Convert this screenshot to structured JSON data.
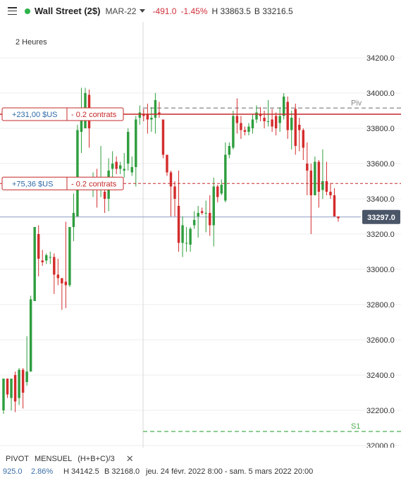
{
  "header": {
    "title": "Wall Street (2$)",
    "contract": "MAR-22",
    "change": "-491.0",
    "change_pct": "-1.45%",
    "high": "H 33863.5",
    "low": "B 33216.5"
  },
  "timeframe_label": "2 Heures",
  "positions": [
    {
      "pnl": "+231,00 $US",
      "size": "- 0.2 contrats",
      "price": 33880
    },
    {
      "pnl": "+75,36 $US",
      "size": "- 0.2 contrats",
      "price": 33487
    }
  ],
  "levels": [
    {
      "label": "Piv",
      "price": 33915,
      "color": "#888888"
    },
    {
      "label": "S1",
      "price": 32080,
      "color": "#4caf50"
    }
  ],
  "current_price": "33297.0",
  "footer": {
    "indicator": "PIVOT",
    "period": "MENSUEL",
    "formula": "(H+B+C)/3",
    "close_symbol": "✕",
    "left_value": "925.0",
    "left_pct": "2.86%",
    "left_high": "H 34142.5",
    "left_low": "B 32168.0",
    "range_text": "jeu. 24 févr. 2022 8:00 - sam. 5 mars 2022 20:00"
  },
  "colors": {
    "up": "#2e9e3e",
    "down": "#d42c2c",
    "accent_red": "#c62828",
    "price_tag": "#4a5568"
  },
  "chart_data": {
    "type": "candlestick",
    "title": "Wall Street (2$) MAR-22",
    "timeframe": "2 Heures",
    "y_ticks": [
      32000,
      32200,
      32400,
      32600,
      32800,
      33000,
      33200,
      33400,
      33600,
      33800,
      34000,
      34200
    ],
    "ylim": [
      31960,
      34320
    ],
    "grid": true,
    "candles": [
      [
        32200,
        32380,
        32180,
        32380
      ],
      [
        32380,
        32380,
        32270,
        32290
      ],
      [
        32270,
        32380,
        32200,
        32380
      ],
      [
        32400,
        32420,
        32190,
        32250
      ],
      [
        32270,
        32440,
        32230,
        32430
      ],
      [
        32430,
        32440,
        32210,
        32300
      ],
      [
        32360,
        32620,
        32340,
        32420
      ],
      [
        32420,
        32850,
        32420,
        32830
      ],
      [
        32820,
        33240,
        32820,
        33240
      ],
      [
        33200,
        33250,
        32960,
        33060
      ],
      [
        33050,
        33110,
        33020,
        33040
      ],
      [
        33050,
        33090,
        33030,
        33080
      ],
      [
        33070,
        33100,
        33030,
        33070
      ],
      [
        33070,
        33090,
        32860,
        32970
      ],
      [
        32970,
        33060,
        32910,
        32950
      ],
      [
        32950,
        32950,
        32770,
        32920
      ],
      [
        32930,
        33270,
        32780,
        32910
      ],
      [
        32910,
        33230,
        32900,
        33240
      ],
      [
        33240,
        33430,
        33160,
        33320
      ],
      [
        33300,
        33820,
        33300,
        33790
      ],
      [
        33780,
        34030,
        33660,
        33870
      ],
      [
        33800,
        34030,
        33800,
        34000
      ],
      [
        33990,
        34020,
        33690,
        33800
      ],
      [
        33500,
        33550,
        33410,
        33500
      ],
      [
        33520,
        33570,
        33350,
        33470
      ],
      [
        33490,
        33700,
        33410,
        33500
      ],
      [
        33440,
        33510,
        33320,
        33400
      ],
      [
        33400,
        33630,
        33330,
        33560
      ],
      [
        33570,
        33670,
        33520,
        33600
      ],
      [
        33610,
        33640,
        33540,
        33570
      ],
      [
        33570,
        33610,
        33540,
        33590
      ],
      [
        33560,
        33660,
        33520,
        33570
      ],
      [
        33600,
        33800,
        33560,
        33780
      ],
      [
        33550,
        33640,
        33530,
        33580
      ],
      [
        33580,
        33870,
        33470,
        33850
      ],
      [
        33860,
        33930,
        33820,
        33890
      ],
      [
        33880,
        33910,
        33840,
        33870
      ],
      [
        33880,
        33940,
        33770,
        33850
      ],
      [
        33850,
        33920,
        33780,
        33860
      ],
      [
        33860,
        34000,
        33770,
        33960
      ],
      [
        33890,
        33950,
        33860,
        33880
      ],
      [
        33850,
        33830,
        33630,
        33650
      ],
      [
        33650,
        33650,
        33530,
        33550
      ],
      [
        33550,
        33560,
        33300,
        33470
      ],
      [
        33470,
        33500,
        33300,
        33400
      ],
      [
        33360,
        33560,
        33100,
        33150
      ],
      [
        33150,
        33300,
        33070,
        33250
      ],
      [
        33150,
        33240,
        33100,
        33150
      ],
      [
        33140,
        33240,
        33100,
        33230
      ],
      [
        33250,
        33330,
        33230,
        33280
      ],
      [
        33300,
        33360,
        33180,
        33320
      ],
      [
        33330,
        33350,
        33310,
        33320
      ],
      [
        33320,
        33390,
        33210,
        33320
      ],
      [
        33320,
        33420,
        33190,
        33250
      ],
      [
        33250,
        33520,
        33130,
        33470
      ],
      [
        33470,
        33480,
        33380,
        33410
      ],
      [
        33430,
        33510,
        33420,
        33480
      ],
      [
        33390,
        33720,
        33380,
        33650
      ],
      [
        33650,
        33720,
        33630,
        33700
      ],
      [
        33690,
        33900,
        33680,
        33870
      ],
      [
        33870,
        33970,
        33770,
        33830
      ],
      [
        33830,
        33870,
        33740,
        33790
      ],
      [
        33790,
        33810,
        33760,
        33780
      ],
      [
        33780,
        33830,
        33760,
        33810
      ],
      [
        33800,
        33880,
        33770,
        33850
      ],
      [
        33850,
        33930,
        33830,
        33890
      ],
      [
        33880,
        33920,
        33840,
        33870
      ],
      [
        33860,
        33900,
        33800,
        33840
      ],
      [
        33840,
        33960,
        33810,
        33840
      ],
      [
        33850,
        33910,
        33780,
        33810
      ],
      [
        33870,
        33890,
        33760,
        33800
      ],
      [
        33830,
        33920,
        33780,
        33870
      ],
      [
        33870,
        34000,
        33850,
        33980
      ],
      [
        33950,
        33980,
        33740,
        33790
      ],
      [
        33790,
        33900,
        33680,
        33860
      ],
      [
        33910,
        33940,
        33650,
        33700
      ],
      [
        33820,
        33860,
        33670,
        33790
      ],
      [
        33790,
        33800,
        33620,
        33690
      ],
      [
        33600,
        33720,
        33420,
        33560
      ],
      [
        33560,
        33600,
        33200,
        33420
      ],
      [
        33420,
        33640,
        33420,
        33610
      ],
      [
        33610,
        33620,
        33350,
        33440
      ],
      [
        33450,
        33680,
        33400,
        33500
      ],
      [
        33500,
        33610,
        33420,
        33440
      ],
      [
        33440,
        33490,
        33400,
        33420
      ],
      [
        33420,
        33460,
        33300,
        33300
      ],
      [
        33300,
        33300,
        33270,
        33290
      ]
    ]
  }
}
